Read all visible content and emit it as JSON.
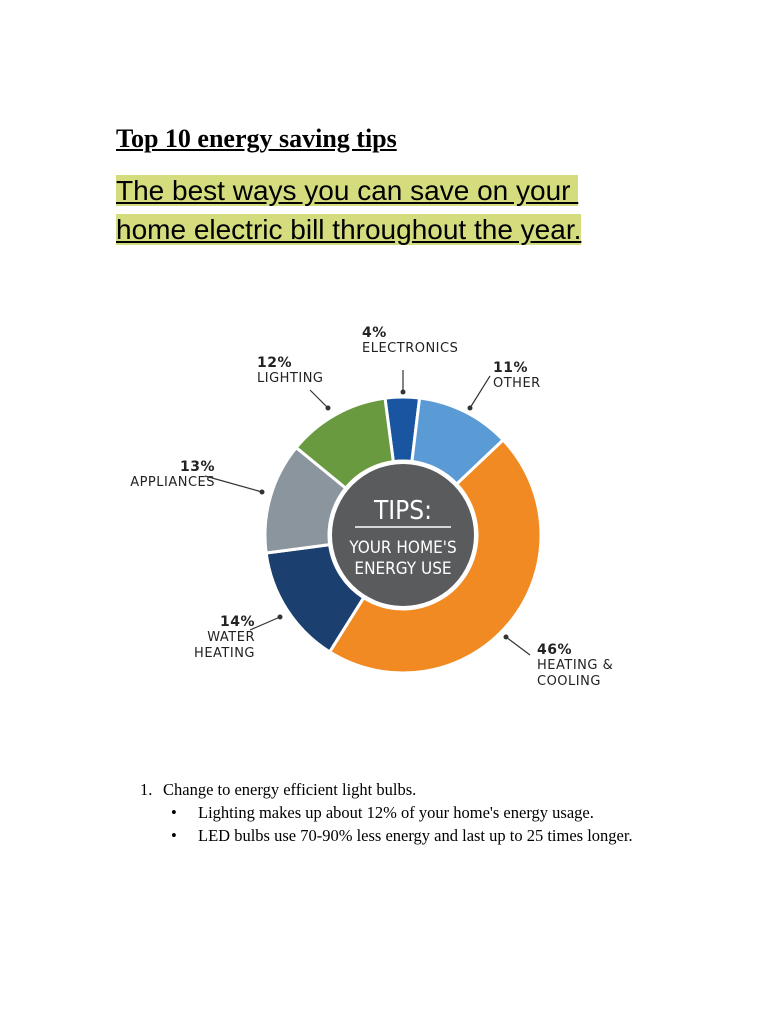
{
  "header": {
    "title": "Top 10 energy saving tips",
    "subtitle": [
      "The best ways you can save on your ",
      "home electric bill throughout the year."
    ]
  },
  "chart_data": {
    "type": "donut",
    "center_title": "TIPS:",
    "center_subtitle": [
      "YOUR HOME'S",
      "ENERGY USE"
    ],
    "categories": [
      "ELECTRONICS",
      "OTHER",
      "HEATING & COOLING",
      "WATER HEATING",
      "APPLIANCES",
      "LIGHTING"
    ],
    "values": [
      4,
      11,
      46,
      14,
      13,
      12
    ],
    "value_labels": [
      "4%",
      "11%",
      "46%",
      "14%",
      "13%",
      "12%"
    ],
    "colors": [
      "#1a55a1",
      "#5b9bd5",
      "#f28a24",
      "#1b3f6f",
      "#8b959d",
      "#6a9a40"
    ]
  },
  "list": {
    "items": [
      {
        "number": "1.",
        "text": "Change to energy efficient light bulbs.",
        "bullets": [
          "Lighting makes up about 12% of your home's energy usage.",
          "LED bulbs use 70-90% less energy and last up to 25 times longer."
        ]
      }
    ]
  }
}
